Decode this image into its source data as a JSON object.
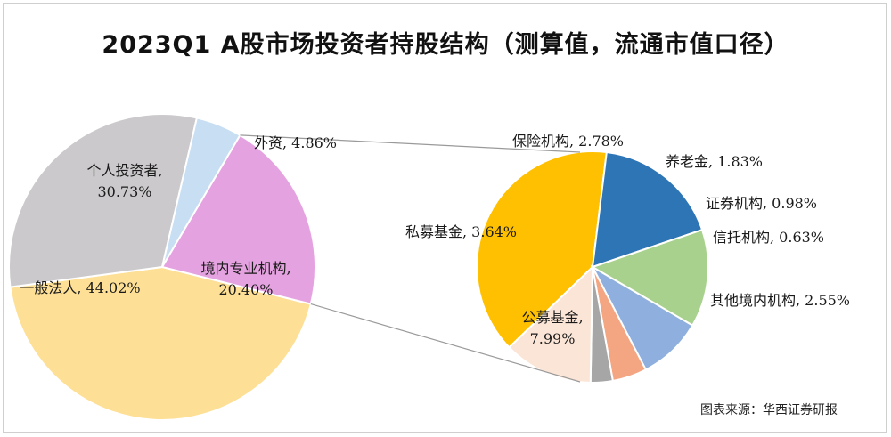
{
  "title": "2023Q1 A股市场投资者持股结构（测算值，流通市值口径）",
  "source": "图表来源：华西证券研报",
  "chart_data": [
    {
      "type": "pie",
      "slices": [
        {
          "name": "一般法人",
          "value": 44.02,
          "label": "44.02%",
          "color": "#fde096"
        },
        {
          "name": "个人投资者",
          "value": 30.73,
          "label": "30.73%",
          "color": "#cbc9cb"
        },
        {
          "name": "外资",
          "value": 4.86,
          "label": "4.86%",
          "color": "#c7def3"
        },
        {
          "name": "境内专业机构",
          "value": 20.4,
          "label": "20.40%",
          "color": "#e5a2e0"
        }
      ]
    },
    {
      "type": "pie",
      "parent": "境内专业机构",
      "slices": [
        {
          "name": "公募基金",
          "value": 7.99,
          "label": "7.99%",
          "color": "#fec000"
        },
        {
          "name": "私募基金",
          "value": 3.64,
          "label": "3.64%",
          "color": "#2e75b6"
        },
        {
          "name": "保险机构",
          "value": 2.78,
          "label": "2.78%",
          "color": "#a9d18e"
        },
        {
          "name": "养老金",
          "value": 1.83,
          "label": "1.83%",
          "color": "#8fb0de"
        },
        {
          "name": "证券机构",
          "value": 0.98,
          "label": "0.98%",
          "color": "#f4a582"
        },
        {
          "name": "信托机构",
          "value": 0.63,
          "label": "0.63%",
          "color": "#a6a6a6"
        },
        {
          "name": "其他境内机构",
          "value": 2.55,
          "label": "2.55%",
          "color": "#fbe5d6"
        }
      ]
    }
  ]
}
